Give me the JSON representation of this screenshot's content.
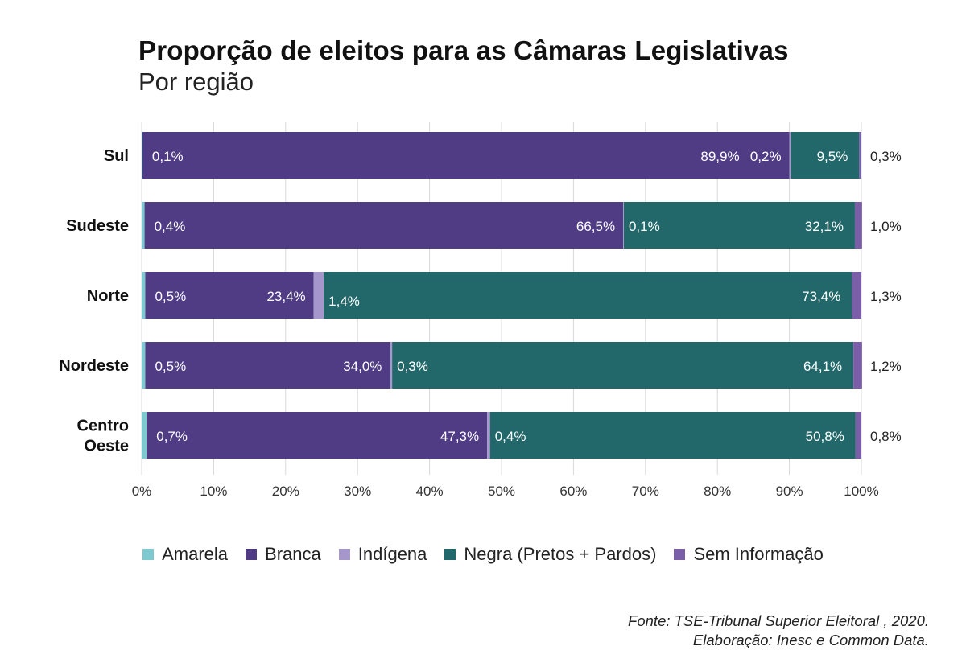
{
  "chart_data": {
    "type": "bar",
    "orientation": "horizontal",
    "stacked": true,
    "title": "Proporção de eleitos para as Câmaras Legislativas",
    "subtitle": "Por região",
    "categories": [
      "Sul",
      "Sudeste",
      "Norte",
      "Nordeste",
      "Centro Oeste"
    ],
    "category_lines": [
      [
        "Sul"
      ],
      [
        "Sudeste"
      ],
      [
        "Norte"
      ],
      [
        "Nordeste"
      ],
      [
        "Centro",
        "Oeste"
      ]
    ],
    "series": [
      {
        "name": "Amarela",
        "color": "#7ec8cf",
        "values": [
          0.1,
          0.4,
          0.5,
          0.5,
          0.7
        ],
        "labels": [
          "0,1%",
          "0,4%",
          "0,5%",
          "0,5%",
          "0,7%"
        ]
      },
      {
        "name": "Branca",
        "color": "#4f3c84",
        "values": [
          89.9,
          66.5,
          23.4,
          34.0,
          47.3
        ],
        "labels": [
          "89,9%",
          "66,5%",
          "23,4%",
          "34,0%",
          "47,3%"
        ]
      },
      {
        "name": "Indígena",
        "color": "#a596cc",
        "values": [
          0.2,
          0.1,
          1.4,
          0.3,
          0.4
        ],
        "labels": [
          "0,2%",
          "0,1%",
          "1,4%",
          "0,3%",
          "0,4%"
        ]
      },
      {
        "name": "Negra (Pretos + Pardos)",
        "color": "#22686a",
        "values": [
          9.5,
          32.1,
          73.4,
          64.1,
          50.8
        ],
        "labels": [
          "9,5%",
          "32,1%",
          "73,4%",
          "64,1%",
          "50,8%"
        ]
      },
      {
        "name": "Sem Informação",
        "color": "#7a5ea8",
        "values": [
          0.3,
          1.0,
          1.3,
          1.2,
          0.8
        ],
        "labels": [
          "0,3%",
          "1,0%",
          "1,3%",
          "1,2%",
          "0,8%"
        ]
      }
    ],
    "x_ticks": [
      "0%",
      "10%",
      "20%",
      "30%",
      "40%",
      "50%",
      "60%",
      "70%",
      "80%",
      "90%",
      "100%"
    ],
    "xlim": [
      0,
      100
    ],
    "grid": true,
    "legend_position": "bottom"
  },
  "source": {
    "line1": "Fonte: TSE-Tribunal Superior Eleitoral , 2020.",
    "line2": "Elaboração: Inesc e Common Data."
  }
}
